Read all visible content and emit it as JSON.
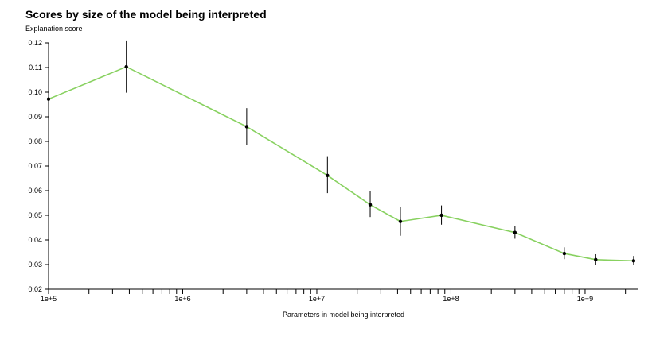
{
  "chart_data": {
    "type": "line",
    "title": "Scores by size of the model being interpreted",
    "ylabel": "Explanation score",
    "xlabel": "Parameters in model being interpreted",
    "xscale": "log",
    "xlim": [
      100000,
      2500000000
    ],
    "ylim": [
      0.02,
      0.12
    ],
    "yticks": [
      0.02,
      0.03,
      0.04,
      0.05,
      0.06,
      0.07,
      0.08,
      0.09,
      0.1,
      0.11,
      0.12
    ],
    "ytick_labels": [
      "0.02",
      "0.03",
      "0.04",
      "0.05",
      "0.06",
      "0.07",
      "0.08",
      "0.09",
      "0.10",
      "0.11",
      "0.12"
    ],
    "xtick_labels": [
      {
        "value": 100000,
        "label": "1e+5"
      },
      {
        "value": 1000000,
        "label": "1e+6"
      },
      {
        "value": 10000000,
        "label": "1e+7"
      },
      {
        "value": 100000000,
        "label": "1e+8"
      },
      {
        "value": 1000000000,
        "label": "1e+9"
      }
    ],
    "line_color": "#88d160",
    "point_color": "#000000",
    "series": [
      {
        "name": "Explanation score",
        "points": [
          {
            "x": 100000,
            "y": 0.0972,
            "lo": 0.0835,
            "hi": 0.111
          },
          {
            "x": 380000,
            "y": 0.1103,
            "lo": 0.0998,
            "hi": 0.121
          },
          {
            "x": 3000000,
            "y": 0.086,
            "lo": 0.0785,
            "hi": 0.0935
          },
          {
            "x": 12000000,
            "y": 0.0662,
            "lo": 0.059,
            "hi": 0.074
          },
          {
            "x": 25000000,
            "y": 0.0543,
            "lo": 0.0493,
            "hi": 0.0597
          },
          {
            "x": 42000000,
            "y": 0.0475,
            "lo": 0.0417,
            "hi": 0.0535
          },
          {
            "x": 85000000,
            "y": 0.05,
            "lo": 0.0462,
            "hi": 0.054
          },
          {
            "x": 300000000,
            "y": 0.043,
            "lo": 0.0405,
            "hi": 0.0455
          },
          {
            "x": 700000000,
            "y": 0.0345,
            "lo": 0.0322,
            "hi": 0.037
          },
          {
            "x": 1200000000,
            "y": 0.032,
            "lo": 0.03,
            "hi": 0.0342
          },
          {
            "x": 2300000000,
            "y": 0.0315,
            "lo": 0.0297,
            "hi": 0.0335
          }
        ]
      }
    ]
  }
}
